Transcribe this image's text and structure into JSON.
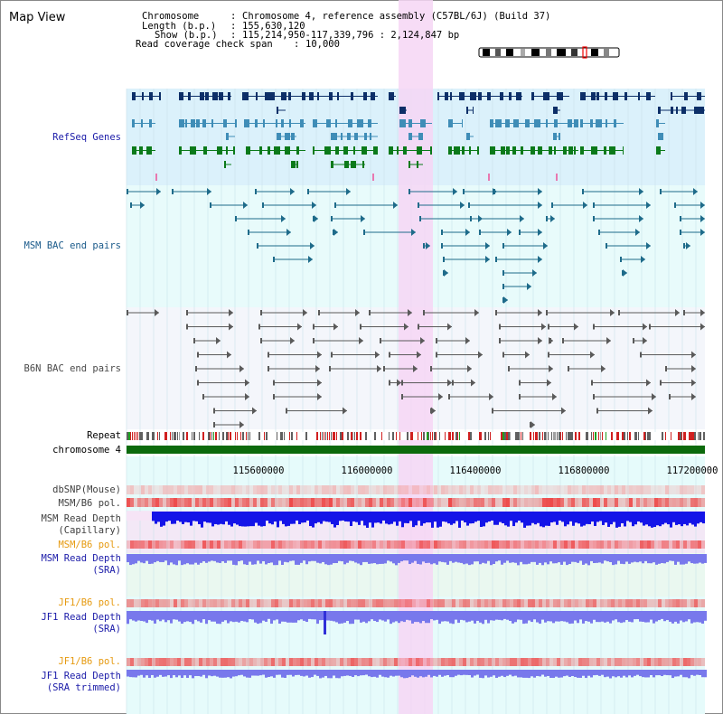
{
  "view_title": "Map View",
  "info": {
    "chromosome_key": "Chromosome",
    "chromosome_value": "Chromosome 4, reference assembly (C57BL/6J) (Build 37)",
    "length_key": "Length (b.p.)",
    "length_value": "155,630,120",
    "show_key": "Show (b.p.)",
    "show_value": "115,214,950-117,339,796 : 2,124,847 bp",
    "coverage_key": "Read coverage check span",
    "coverage_value": "10,000"
  },
  "colors": {
    "refseq_bg": "#dbf1fb",
    "bac_bg": "#e8fbfb",
    "b6n_bg": "#f4f6fb",
    "highlight": "#f6d6f4",
    "refseq_dark": "#0d2f68",
    "refseq_mid": "#3f8db7",
    "refseq_green": "#0b7a1a",
    "bac_line": "#1e6b8a",
    "b6n_line": "#5a5a5a",
    "chromosome_bar": "#0c6a0c",
    "snp_color": "#f3a8a8",
    "pol_color": "#ee4040",
    "depth_blue": "#1414e8",
    "depth_light": "#7878ec"
  },
  "tracks": {
    "refseq": "RefSeq Genes",
    "msm_bac": "MSM BAC end pairs",
    "b6n_bac": "B6N BAC end pairs",
    "repeat": "Repeat",
    "chromosome": "chromosome 4",
    "dbsnp": "dbSNP(Mouse)",
    "msm_pol_1": "MSM/B6 pol.",
    "msm_depth_cap_1": "MSM Read Depth",
    "msm_depth_cap_2": "(Capillary)",
    "msm_pol_2": "MSM/B6 pol.",
    "msm_depth_sra_1": "MSM Read Depth",
    "msm_depth_sra_2": "(SRA)",
    "jf1_pol_1": "JF1/B6 pol.",
    "jf1_depth_sra_1": "JF1 Read Depth",
    "jf1_depth_sra_2": "(SRA)",
    "jf1_pol_2": "JF1/B6 pol.",
    "jf1_depth_trim_1": "JF1 Read Depth",
    "jf1_depth_trim_2": "(SRA trimmed)"
  },
  "track_label_colors": {
    "refseq": "#1a1aa8",
    "msm_bac": "#1a5a8a",
    "b6n_bac": "#4a4a4a",
    "default": "#000000",
    "pol_msm": "#404040",
    "pol_orange": "#e69a10",
    "depth_blue": "#1a1aa8"
  },
  "axis_ticks": [
    "115600000",
    "116000000",
    "116400000",
    "116800000",
    "117200000"
  ]
}
